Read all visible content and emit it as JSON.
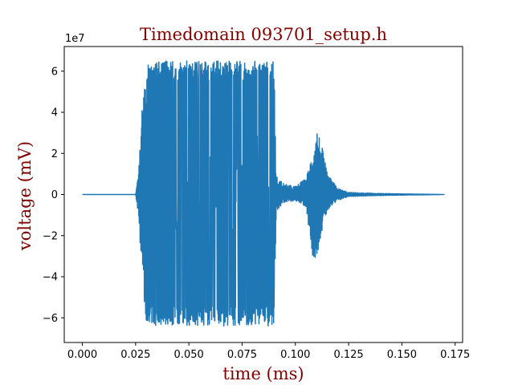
{
  "chart_data": {
    "type": "line",
    "title": "Timedomain 093701_setup.h",
    "xlabel": "time (ms)",
    "ylabel": "voltage (mV)",
    "y_multiplier_label": "1e7",
    "xlim": [
      -0.0085,
      0.1785
    ],
    "ylim": [
      -7.2,
      7.2
    ],
    "x_ticks": [
      0.0,
      0.025,
      0.05,
      0.075,
      0.1,
      0.125,
      0.15,
      0.175
    ],
    "x_tick_labels": [
      "0.000",
      "0.025",
      "0.050",
      "0.075",
      "0.100",
      "0.125",
      "0.150",
      "0.175"
    ],
    "y_ticks": [
      -6,
      -4,
      -2,
      0,
      2,
      4,
      6
    ],
    "y_tick_labels": [
      "−6",
      "−4",
      "−2",
      "0",
      "2",
      "4",
      "6"
    ],
    "grid": false,
    "color": "#1f77b4",
    "series_envelope": {
      "note_units": "x in ms, y in units of 1e7 mV",
      "x": [
        0.0,
        0.025,
        0.026,
        0.028,
        0.03,
        0.09,
        0.091,
        0.095,
        0.1,
        0.105,
        0.108,
        0.11,
        0.112,
        0.115,
        0.12,
        0.125,
        0.14,
        0.17
      ],
      "upper": [
        0.0,
        0.0,
        0.8,
        4.5,
        6.5,
        6.5,
        0.9,
        0.5,
        0.4,
        0.8,
        2.0,
        3.3,
        2.6,
        1.0,
        0.3,
        0.1,
        0.05,
        0.0
      ],
      "lower": [
        0.0,
        0.0,
        -0.8,
        -3.8,
        -6.4,
        -6.4,
        -0.8,
        -0.4,
        -0.3,
        -0.6,
        -3.0,
        -3.1,
        -2.0,
        -0.8,
        -0.3,
        -0.1,
        -0.05,
        0.0
      ]
    }
  }
}
